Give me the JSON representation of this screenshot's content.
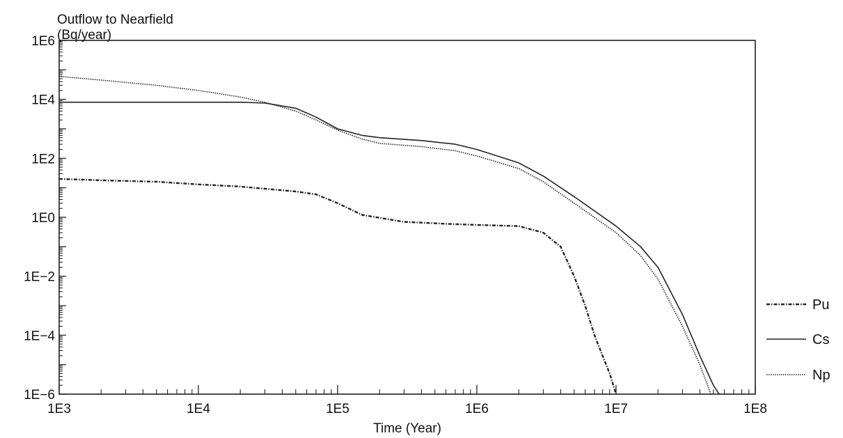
{
  "chart_data": {
    "type": "line",
    "ylabel": [
      "Outflow to Nearfield",
      "(Bq/year)"
    ],
    "xlabel": "Time (Year)",
    "xscale": "log",
    "yscale": "log",
    "xlim": [
      1000,
      100000000
    ],
    "ylim": [
      1e-06,
      1000000
    ],
    "x_ticks": [
      {
        "value": 1000,
        "label": "1E3"
      },
      {
        "value": 10000,
        "label": "1E4"
      },
      {
        "value": 100000,
        "label": "1E5"
      },
      {
        "value": 1000000,
        "label": "1E6"
      },
      {
        "value": 10000000,
        "label": "1E7"
      },
      {
        "value": 100000000,
        "label": "1E8"
      }
    ],
    "y_ticks": [
      {
        "value": 1000000,
        "label": "1E6"
      },
      {
        "value": 10000,
        "label": "1E4"
      },
      {
        "value": 100,
        "label": "1E2"
      },
      {
        "value": 1,
        "label": "1E0"
      },
      {
        "value": 0.01,
        "label": "1E−2"
      },
      {
        "value": 0.0001,
        "label": "1E−4"
      },
      {
        "value": 1e-06,
        "label": "1E−6"
      }
    ],
    "legend_position": "right-bottom",
    "series": [
      {
        "name": "Pu",
        "style": "dashdot",
        "x": [
          1000,
          2000,
          5000,
          10000,
          20000,
          50000,
          70000,
          100000,
          150000,
          300000,
          600000,
          1000000,
          2000000,
          3000000,
          4000000,
          5000000,
          6000000,
          7000000,
          8000000,
          9000000,
          10000000
        ],
        "y": [
          20,
          18,
          16,
          13,
          11,
          7.5,
          6,
          3,
          1.2,
          0.7,
          0.6,
          0.55,
          0.5,
          0.3,
          0.1,
          0.01,
          0.001,
          0.0001,
          2e-05,
          5e-06,
          1e-06
        ]
      },
      {
        "name": "Cs",
        "style": "solid",
        "x": [
          1000,
          5000,
          10000,
          20000,
          30000,
          50000,
          70000,
          100000,
          150000,
          200000,
          400000,
          700000,
          1000000,
          2000000,
          3000000,
          5000000,
          10000000,
          15000000,
          20000000,
          30000000,
          40000000,
          50000000,
          55000000
        ],
        "y": [
          8000,
          8000,
          8000,
          8000,
          7500,
          5000,
          2500,
          1000,
          600,
          500,
          400,
          300,
          200,
          70,
          25,
          5,
          0.5,
          0.1,
          0.02,
          0.0005,
          2e-05,
          2e-06,
          1e-06
        ]
      },
      {
        "name": "Np",
        "style": "dotted",
        "x": [
          1000,
          2000,
          5000,
          10000,
          20000,
          30000,
          50000,
          70000,
          100000,
          150000,
          200000,
          400000,
          700000,
          1000000,
          2000000,
          3000000,
          5000000,
          10000000,
          15000000,
          20000000,
          30000000,
          40000000,
          48000000
        ],
        "y": [
          60000,
          45000,
          30000,
          20000,
          12000,
          8000,
          4000,
          2000,
          900,
          450,
          320,
          250,
          180,
          120,
          45,
          16,
          3,
          0.3,
          0.05,
          0.008,
          0.0002,
          1e-05,
          1e-06
        ]
      }
    ]
  }
}
